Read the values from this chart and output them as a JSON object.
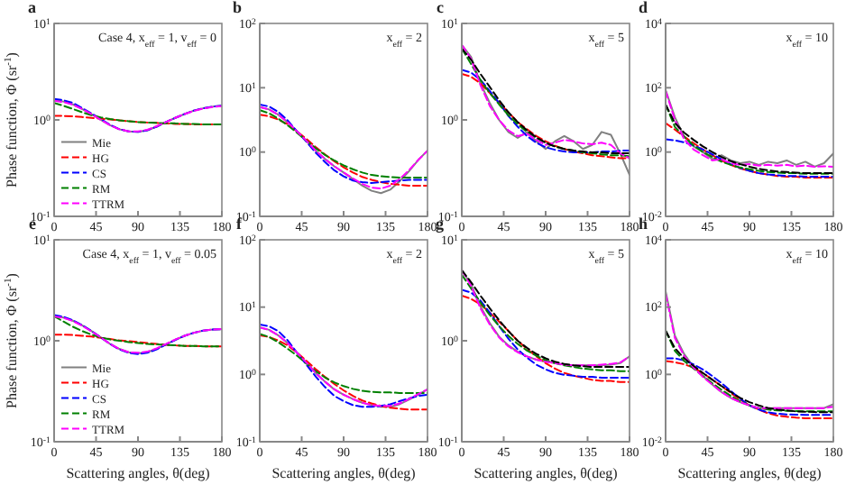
{
  "chart_data": [
    {
      "type": "line",
      "title": "a",
      "ylabel": "Phase function, Φ (sr$^{-1}$)",
      "annotations": [
        "Case 4, x$_{eff}$ = 1, v$_{eff}$ = 0"
      ],
      "log": "y",
      "legend": "bottom left",
      "xlim": [
        0,
        180
      ],
      "xticks": [
        0,
        45,
        90,
        135,
        180
      ],
      "ylim": [
        0.1,
        10
      ],
      "yticks": [
        {
          "value": 0.1,
          "label": "10$^{-1}$"
        },
        {
          "value": 1,
          "label": "10$^{0}$"
        },
        {
          "value": 10,
          "label": "10$^{1}$"
        }
      ],
      "x": [
        0,
        10,
        20,
        30,
        40,
        50,
        60,
        70,
        80,
        90,
        100,
        110,
        120,
        130,
        140,
        150,
        160,
        170,
        180
      ],
      "series": [
        {
          "name": "Mie",
          "color": "#808080",
          "line_style": "solid",
          "values": [
            1.6,
            1.55,
            1.45,
            1.3,
            1.15,
            1.0,
            0.88,
            0.8,
            0.76,
            0.75,
            0.78,
            0.85,
            0.95,
            1.05,
            1.15,
            1.25,
            1.32,
            1.37,
            1.4
          ]
        },
        {
          "name": "HG",
          "color": "#ff0000",
          "line_style": "dashed",
          "values": [
            1.1,
            1.1,
            1.09,
            1.07,
            1.05,
            1.03,
            1.01,
            0.99,
            0.97,
            0.95,
            0.94,
            0.93,
            0.92,
            0.91,
            0.91,
            0.9,
            0.9,
            0.9,
            0.9
          ]
        },
        {
          "name": "CS",
          "color": "#0000ff",
          "line_style": "dashed",
          "values": [
            1.65,
            1.6,
            1.5,
            1.33,
            1.17,
            1.02,
            0.89,
            0.8,
            0.76,
            0.75,
            0.78,
            0.85,
            0.95,
            1.05,
            1.15,
            1.25,
            1.32,
            1.37,
            1.4
          ]
        },
        {
          "name": "RM",
          "color": "#008000",
          "line_style": "dashed",
          "values": [
            1.5,
            1.4,
            1.3,
            1.2,
            1.12,
            1.06,
            1.02,
            0.99,
            0.97,
            0.95,
            0.94,
            0.93,
            0.92,
            0.92,
            0.91,
            0.91,
            0.9,
            0.9,
            0.9
          ]
        },
        {
          "name": "TTRM",
          "color": "#ff00ff",
          "line_style": "dashed",
          "values": [
            1.58,
            1.53,
            1.44,
            1.3,
            1.15,
            1.0,
            0.88,
            0.8,
            0.76,
            0.76,
            0.79,
            0.86,
            0.95,
            1.05,
            1.15,
            1.24,
            1.31,
            1.36,
            1.39
          ]
        }
      ]
    },
    {
      "type": "line",
      "title": "b",
      "annotations": [
        "x$_{eff}$ = 2"
      ],
      "log": "y",
      "xlim": [
        0,
        180
      ],
      "xticks": [
        0,
        45,
        90,
        135,
        180
      ],
      "ylim": [
        0.1,
        100
      ],
      "yticks": [
        {
          "value": 0.1,
          "label": "10$^{-1}$"
        },
        {
          "value": 1,
          "label": "10$^{0}$"
        },
        {
          "value": 10,
          "label": "10$^{1}$"
        },
        {
          "value": 100,
          "label": "10$^{2}$"
        }
      ],
      "x": [
        0,
        10,
        20,
        30,
        40,
        50,
        60,
        70,
        80,
        90,
        100,
        110,
        120,
        130,
        140,
        150,
        160,
        170,
        180
      ],
      "series": [
        {
          "color": "#808080",
          "line_style": "solid",
          "values": [
            5,
            4.6,
            3.8,
            2.9,
            2.1,
            1.5,
            1.05,
            0.78,
            0.6,
            0.48,
            0.38,
            0.3,
            0.25,
            0.23,
            0.26,
            0.35,
            0.5,
            0.75,
            1.05
          ]
        },
        {
          "color": "#ff0000",
          "line_style": "dashed",
          "values": [
            3.8,
            3.6,
            3.2,
            2.7,
            2.1,
            1.6,
            1.2,
            0.92,
            0.72,
            0.58,
            0.48,
            0.41,
            0.37,
            0.34,
            0.32,
            0.31,
            0.3,
            0.3,
            0.3
          ]
        },
        {
          "color": "#0000ff",
          "line_style": "dashed",
          "values": [
            5.5,
            5.1,
            4.2,
            3.1,
            2.1,
            1.45,
            0.98,
            0.7,
            0.52,
            0.42,
            0.36,
            0.34,
            0.33,
            0.34,
            0.35,
            0.36,
            0.37,
            0.37,
            0.37
          ]
        },
        {
          "color": "#008000",
          "line_style": "dashed",
          "values": [
            4.5,
            4.0,
            3.3,
            2.6,
            2.0,
            1.5,
            1.15,
            0.9,
            0.74,
            0.62,
            0.54,
            0.48,
            0.44,
            0.42,
            0.41,
            0.4,
            0.4,
            0.4,
            0.4
          ]
        },
        {
          "color": "#ff00ff",
          "line_style": "dashed",
          "values": [
            5,
            4.6,
            3.8,
            2.9,
            2.1,
            1.5,
            1.05,
            0.78,
            0.6,
            0.48,
            0.39,
            0.32,
            0.28,
            0.27,
            0.3,
            0.38,
            0.52,
            0.75,
            1.05
          ]
        }
      ]
    },
    {
      "type": "line",
      "title": "c",
      "annotations": [
        "x$_{eff}$ = 5"
      ],
      "log": "y",
      "xlim": [
        0,
        180
      ],
      "xticks": [
        0,
        45,
        90,
        135,
        180
      ],
      "ylim": [
        0.1,
        10
      ],
      "yticks": [
        {
          "value": 0.1,
          "label": "10$^{-1}$"
        },
        {
          "value": 1,
          "label": "10$^{0}$"
        },
        {
          "value": 10,
          "label": "10$^{1}$"
        }
      ],
      "x": [
        0,
        10,
        20,
        30,
        40,
        50,
        60,
        70,
        80,
        90,
        100,
        110,
        120,
        130,
        140,
        150,
        160,
        170,
        180
      ],
      "series": [
        {
          "color": "#808080",
          "line_style": "solid",
          "values": [
            6,
            4.5,
            2.4,
            1.5,
            1.0,
            0.75,
            0.65,
            0.75,
            0.6,
            0.5,
            0.6,
            0.68,
            0.6,
            0.5,
            0.55,
            0.75,
            0.7,
            0.45,
            0.27
          ]
        },
        {
          "color": "#ff0000",
          "line_style": "dashed",
          "values": [
            3.0,
            2.8,
            2.4,
            1.9,
            1.5,
            1.2,
            0.95,
            0.8,
            0.68,
            0.6,
            0.54,
            0.5,
            0.47,
            0.45,
            0.43,
            0.42,
            0.41,
            0.4,
            0.4
          ]
        },
        {
          "color": "#0000ff",
          "line_style": "dashed",
          "values": [
            3.3,
            3.1,
            2.6,
            2.0,
            1.5,
            1.1,
            0.85,
            0.68,
            0.58,
            0.52,
            0.49,
            0.47,
            0.46,
            0.46,
            0.46,
            0.47,
            0.47,
            0.48,
            0.48
          ]
        },
        {
          "color": "#008000",
          "line_style": "dashed",
          "values": [
            5.5,
            3.8,
            2.6,
            1.9,
            1.45,
            1.12,
            0.9,
            0.75,
            0.65,
            0.58,
            0.53,
            0.5,
            0.48,
            0.46,
            0.45,
            0.44,
            0.43,
            0.43,
            0.42
          ]
        },
        {
          "color": "#ff00ff",
          "line_style": "dashed",
          "values": [
            6,
            4.3,
            2.3,
            1.4,
            1.0,
            0.78,
            0.68,
            0.72,
            0.62,
            0.55,
            0.58,
            0.62,
            0.6,
            0.57,
            0.56,
            0.58,
            0.55,
            0.45,
            0.4
          ]
        },
        {
          "color": "#000000",
          "line_style": "dashed",
          "values": [
            5.5,
            4.2,
            3.0,
            2.2,
            1.6,
            1.2,
            0.95,
            0.78,
            0.66,
            0.58,
            0.53,
            0.5,
            0.48,
            0.47,
            0.46,
            0.46,
            0.45,
            0.45,
            0.45
          ]
        }
      ]
    },
    {
      "type": "line",
      "title": "d",
      "annotations": [
        "x$_{eff}$ = 10"
      ],
      "log": "y",
      "xlim": [
        0,
        180
      ],
      "xticks": [
        0,
        45,
        90,
        135,
        180
      ],
      "ylim": [
        0.01,
        10000
      ],
      "yticks": [
        {
          "value": 0.01,
          "label": "10$^{-2}$"
        },
        {
          "value": 1,
          "label": "10$^{0}$"
        },
        {
          "value": 100,
          "label": "10$^{2}$"
        },
        {
          "value": 10000,
          "label": "10$^{4}$"
        }
      ],
      "x": [
        0,
        10,
        20,
        30,
        40,
        50,
        60,
        70,
        80,
        90,
        100,
        110,
        120,
        130,
        140,
        150,
        160,
        170,
        180
      ],
      "series": [
        {
          "color": "#808080",
          "line_style": "solid",
          "values": [
            85,
            12,
            3,
            1.5,
            1.0,
            0.6,
            0.8,
            0.55,
            0.45,
            0.5,
            0.4,
            0.5,
            0.45,
            0.55,
            0.4,
            0.5,
            0.35,
            0.45,
            0.9
          ]
        },
        {
          "color": "#ff0000",
          "line_style": "dashed",
          "values": [
            8,
            5,
            3,
            1.9,
            1.2,
            0.8,
            0.55,
            0.4,
            0.31,
            0.26,
            0.22,
            0.2,
            0.18,
            0.17,
            0.17,
            0.16,
            0.16,
            0.16,
            0.16
          ]
        },
        {
          "color": "#0000ff",
          "line_style": "dashed",
          "values": [
            2.5,
            2.3,
            2.0,
            1.6,
            1.2,
            0.85,
            0.6,
            0.42,
            0.32,
            0.26,
            0.22,
            0.2,
            0.19,
            0.18,
            0.18,
            0.17,
            0.17,
            0.17,
            0.17
          ]
        },
        {
          "color": "#008000",
          "line_style": "dashed",
          "values": [
            30,
            6,
            3,
            1.6,
            1.0,
            0.7,
            0.5,
            0.4,
            0.33,
            0.29,
            0.26,
            0.24,
            0.23,
            0.22,
            0.22,
            0.21,
            0.21,
            0.21,
            0.21
          ]
        },
        {
          "color": "#ff00ff",
          "line_style": "dashed",
          "values": [
            80,
            10,
            2.5,
            1.2,
            0.8,
            0.55,
            0.6,
            0.45,
            0.4,
            0.42,
            0.38,
            0.4,
            0.38,
            0.4,
            0.36,
            0.38,
            0.35,
            0.36,
            0.35
          ]
        },
        {
          "color": "#000000",
          "line_style": "dashed",
          "values": [
            30,
            8,
            4,
            2.4,
            1.5,
            1.0,
            0.7,
            0.52,
            0.42,
            0.35,
            0.3,
            0.27,
            0.25,
            0.24,
            0.23,
            0.22,
            0.22,
            0.22,
            0.22
          ]
        }
      ]
    },
    {
      "type": "line",
      "title": "e",
      "ylabel": "Phase function, Φ (sr$^{-1}$)",
      "xlabel": "Scattering angles, θ(deg)",
      "annotations": [
        "Case 4, x$_{eff}$ = 1, v$_{eff}$ = 0.05"
      ],
      "log": "y",
      "legend": "bottom left",
      "xlim": [
        0,
        180
      ],
      "xticks": [
        0,
        45,
        90,
        135,
        180
      ],
      "ylim": [
        0.1,
        10
      ],
      "yticks": [
        {
          "value": 0.1,
          "label": "10$^{-1}$"
        },
        {
          "value": 1,
          "label": "10$^{0}$"
        },
        {
          "value": 10,
          "label": "10$^{1}$"
        }
      ],
      "x": [
        0,
        10,
        20,
        30,
        40,
        50,
        60,
        70,
        80,
        90,
        100,
        110,
        120,
        130,
        140,
        150,
        160,
        170,
        180
      ],
      "series": [
        {
          "name": "Mie",
          "color": "#808080",
          "line_style": "solid",
          "values": [
            1.75,
            1.7,
            1.58,
            1.42,
            1.25,
            1.08,
            0.93,
            0.83,
            0.77,
            0.75,
            0.77,
            0.83,
            0.92,
            1.02,
            1.12,
            1.2,
            1.26,
            1.29,
            1.3
          ]
        },
        {
          "name": "HG",
          "color": "#ff0000",
          "line_style": "dashed",
          "values": [
            1.15,
            1.15,
            1.14,
            1.12,
            1.1,
            1.07,
            1.04,
            1.01,
            0.99,
            0.97,
            0.95,
            0.93,
            0.91,
            0.9,
            0.89,
            0.89,
            0.88,
            0.88,
            0.88
          ]
        },
        {
          "name": "CS",
          "color": "#0000ff",
          "line_style": "dashed",
          "values": [
            1.8,
            1.73,
            1.6,
            1.43,
            1.25,
            1.08,
            0.93,
            0.82,
            0.76,
            0.74,
            0.76,
            0.82,
            0.92,
            1.02,
            1.12,
            1.2,
            1.26,
            1.29,
            1.3
          ]
        },
        {
          "name": "RM",
          "color": "#008000",
          "line_style": "dashed",
          "values": [
            1.75,
            1.55,
            1.38,
            1.25,
            1.15,
            1.08,
            1.03,
            1.0,
            0.97,
            0.95,
            0.93,
            0.92,
            0.91,
            0.9,
            0.89,
            0.89,
            0.88,
            0.88,
            0.88
          ]
        },
        {
          "name": "TTRM",
          "color": "#ff00ff",
          "line_style": "dashed",
          "values": [
            1.74,
            1.69,
            1.57,
            1.41,
            1.24,
            1.08,
            0.93,
            0.83,
            0.77,
            0.76,
            0.78,
            0.84,
            0.93,
            1.03,
            1.12,
            1.2,
            1.26,
            1.29,
            1.31
          ]
        }
      ]
    },
    {
      "type": "line",
      "title": "f",
      "xlabel": "Scattering angles, θ(deg)",
      "annotations": [
        "x$_{eff}$ = 2"
      ],
      "log": "y",
      "xlim": [
        0,
        180
      ],
      "xticks": [
        0,
        45,
        90,
        135,
        180
      ],
      "ylim": [
        0.1,
        100
      ],
      "yticks": [
        {
          "value": 0.1,
          "label": "10$^{-1}$"
        },
        {
          "value": 1,
          "label": "10$^{0}$"
        },
        {
          "value": 10,
          "label": "10$^{1}$"
        },
        {
          "value": 100,
          "label": "10$^{2}$"
        }
      ],
      "x": [
        0,
        10,
        20,
        30,
        40,
        50,
        60,
        70,
        80,
        90,
        100,
        110,
        120,
        130,
        140,
        150,
        160,
        170,
        180
      ],
      "series": [
        {
          "color": "#808080",
          "line_style": "solid",
          "values": [
            5,
            4.6,
            3.8,
            2.9,
            2.1,
            1.5,
            1.05,
            0.78,
            0.6,
            0.5,
            0.43,
            0.38,
            0.35,
            0.33,
            0.33,
            0.36,
            0.42,
            0.5,
            0.6
          ]
        },
        {
          "color": "#ff0000",
          "line_style": "dashed",
          "values": [
            3.8,
            3.6,
            3.2,
            2.7,
            2.1,
            1.6,
            1.2,
            0.92,
            0.72,
            0.58,
            0.48,
            0.41,
            0.37,
            0.34,
            0.32,
            0.31,
            0.3,
            0.3,
            0.3
          ]
        },
        {
          "color": "#0000ff",
          "line_style": "dashed",
          "values": [
            5.5,
            5.2,
            4.4,
            3.2,
            2.1,
            1.4,
            0.93,
            0.65,
            0.48,
            0.4,
            0.35,
            0.33,
            0.33,
            0.34,
            0.36,
            0.4,
            0.44,
            0.48,
            0.5
          ]
        },
        {
          "color": "#008000",
          "line_style": "dashed",
          "values": [
            4,
            3.6,
            3.0,
            2.4,
            1.9,
            1.45,
            1.12,
            0.9,
            0.76,
            0.67,
            0.61,
            0.57,
            0.55,
            0.54,
            0.54,
            0.53,
            0.53,
            0.53,
            0.53
          ]
        },
        {
          "color": "#ff00ff",
          "line_style": "dashed",
          "values": [
            5,
            4.6,
            3.8,
            2.9,
            2.1,
            1.5,
            1.05,
            0.78,
            0.6,
            0.5,
            0.43,
            0.38,
            0.35,
            0.34,
            0.34,
            0.37,
            0.43,
            0.51,
            0.6
          ]
        }
      ]
    },
    {
      "type": "line",
      "title": "g",
      "xlabel": "Scattering angles, θ(deg)",
      "annotations": [
        "x$_{eff}$ = 5"
      ],
      "log": "y",
      "xlim": [
        0,
        180
      ],
      "xticks": [
        0,
        45,
        90,
        135,
        180
      ],
      "ylim": [
        0.1,
        10
      ],
      "yticks": [
        {
          "value": 0.1,
          "label": "10$^{-1}$"
        },
        {
          "value": 1,
          "label": "10$^{0}$"
        },
        {
          "value": 10,
          "label": "10$^{1}$"
        }
      ],
      "x": [
        0,
        10,
        20,
        30,
        40,
        50,
        60,
        70,
        80,
        90,
        100,
        110,
        120,
        130,
        140,
        150,
        160,
        170,
        180
      ],
      "series": [
        {
          "color": "#808080",
          "line_style": "solid",
          "values": [
            5,
            3.6,
            2.2,
            1.5,
            1.1,
            0.9,
            0.78,
            0.7,
            0.65,
            0.62,
            0.6,
            0.58,
            0.57,
            0.57,
            0.57,
            0.57,
            0.58,
            0.6,
            0.7
          ]
        },
        {
          "color": "#ff0000",
          "line_style": "dashed",
          "values": [
            2.8,
            2.6,
            2.3,
            1.9,
            1.55,
            1.25,
            1.0,
            0.83,
            0.7,
            0.6,
            0.53,
            0.48,
            0.45,
            0.43,
            0.41,
            0.4,
            0.4,
            0.39,
            0.39
          ]
        },
        {
          "color": "#0000ff",
          "line_style": "dashed",
          "values": [
            3.2,
            3.0,
            2.5,
            1.9,
            1.4,
            1.05,
            0.82,
            0.68,
            0.58,
            0.52,
            0.48,
            0.46,
            0.45,
            0.44,
            0.44,
            0.43,
            0.43,
            0.43,
            0.43
          ]
        },
        {
          "color": "#008000",
          "line_style": "dashed",
          "values": [
            4.5,
            3.3,
            2.4,
            1.8,
            1.4,
            1.12,
            0.93,
            0.8,
            0.71,
            0.64,
            0.6,
            0.57,
            0.55,
            0.53,
            0.52,
            0.51,
            0.51,
            0.5,
            0.5
          ]
        },
        {
          "color": "#ff00ff",
          "line_style": "dashed",
          "values": [
            5,
            3.5,
            2.1,
            1.45,
            1.08,
            0.88,
            0.77,
            0.7,
            0.65,
            0.62,
            0.6,
            0.58,
            0.57,
            0.57,
            0.57,
            0.58,
            0.59,
            0.61,
            0.7
          ]
        },
        {
          "color": "#000000",
          "line_style": "dashed",
          "values": [
            5,
            3.8,
            2.8,
            2.1,
            1.6,
            1.25,
            1.0,
            0.85,
            0.74,
            0.67,
            0.62,
            0.59,
            0.57,
            0.56,
            0.55,
            0.55,
            0.55,
            0.55,
            0.55
          ]
        }
      ]
    },
    {
      "type": "line",
      "title": "h",
      "xlabel": "Scattering angles, θ(deg)",
      "annotations": [
        "x$_{eff}$ = 10"
      ],
      "log": "y",
      "xlim": [
        0,
        180
      ],
      "xticks": [
        0,
        45,
        90,
        135,
        180
      ],
      "ylim": [
        0.01,
        10000
      ],
      "yticks": [
        {
          "value": 0.01,
          "label": "10$^{-2}$"
        },
        {
          "value": 1,
          "label": "10$^{0}$"
        },
        {
          "value": 100,
          "label": "10$^{2}$"
        },
        {
          "value": 10000,
          "label": "10$^{4}$"
        }
      ],
      "x": [
        0,
        10,
        20,
        30,
        40,
        50,
        60,
        70,
        80,
        90,
        100,
        110,
        120,
        130,
        140,
        150,
        160,
        170,
        180
      ],
      "series": [
        {
          "color": "#808080",
          "line_style": "solid",
          "values": [
            300,
            14,
            4,
            1.7,
            0.9,
            0.5,
            0.3,
            0.2,
            0.15,
            0.12,
            0.1,
            0.1,
            0.1,
            0.1,
            0.1,
            0.1,
            0.1,
            0.1,
            0.13
          ]
        },
        {
          "color": "#ff0000",
          "line_style": "dashed",
          "values": [
            2.5,
            2.3,
            2.0,
            1.6,
            1.1,
            0.7,
            0.45,
            0.28,
            0.18,
            0.12,
            0.09,
            0.07,
            0.06,
            0.055,
            0.052,
            0.05,
            0.05,
            0.05,
            0.05
          ]
        },
        {
          "color": "#0000ff",
          "line_style": "dashed",
          "values": [
            3,
            3,
            2.6,
            2.0,
            1.4,
            0.9,
            0.55,
            0.32,
            0.19,
            0.12,
            0.09,
            0.075,
            0.068,
            0.065,
            0.064,
            0.063,
            0.063,
            0.063,
            0.063
          ]
        },
        {
          "color": "#008000",
          "line_style": "dashed",
          "values": [
            20,
            5,
            2.5,
            1.5,
            0.9,
            0.55,
            0.35,
            0.23,
            0.16,
            0.12,
            0.1,
            0.09,
            0.085,
            0.083,
            0.082,
            0.08,
            0.08,
            0.08,
            0.08
          ]
        },
        {
          "color": "#ff00ff",
          "line_style": "dashed",
          "values": [
            250,
            12,
            3.5,
            1.6,
            0.85,
            0.5,
            0.3,
            0.2,
            0.15,
            0.12,
            0.1,
            0.1,
            0.1,
            0.1,
            0.1,
            0.1,
            0.1,
            0.1,
            0.11
          ]
        },
        {
          "color": "#000000",
          "line_style": "dashed",
          "values": [
            20,
            6,
            3,
            1.8,
            1.1,
            0.7,
            0.45,
            0.3,
            0.2,
            0.15,
            0.12,
            0.1,
            0.09,
            0.085,
            0.08,
            0.078,
            0.076,
            0.075,
            0.075
          ]
        }
      ]
    }
  ]
}
